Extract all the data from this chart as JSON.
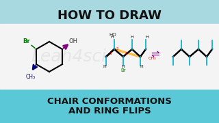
{
  "title_top": "HOW TO DRAW",
  "title_bottom_line1": "CHAIR CONFORMATIONS",
  "title_bottom_line2": "AND RING FLIPS",
  "bg_top": "#a8d8e0",
  "bg_bottom": "#5bc8d8",
  "bg_middle": "#f0f0f0",
  "title_color": "#111111",
  "subtitle_color": "#111111",
  "watermark": "Leah4sci",
  "watermark_color": "#cccccc"
}
